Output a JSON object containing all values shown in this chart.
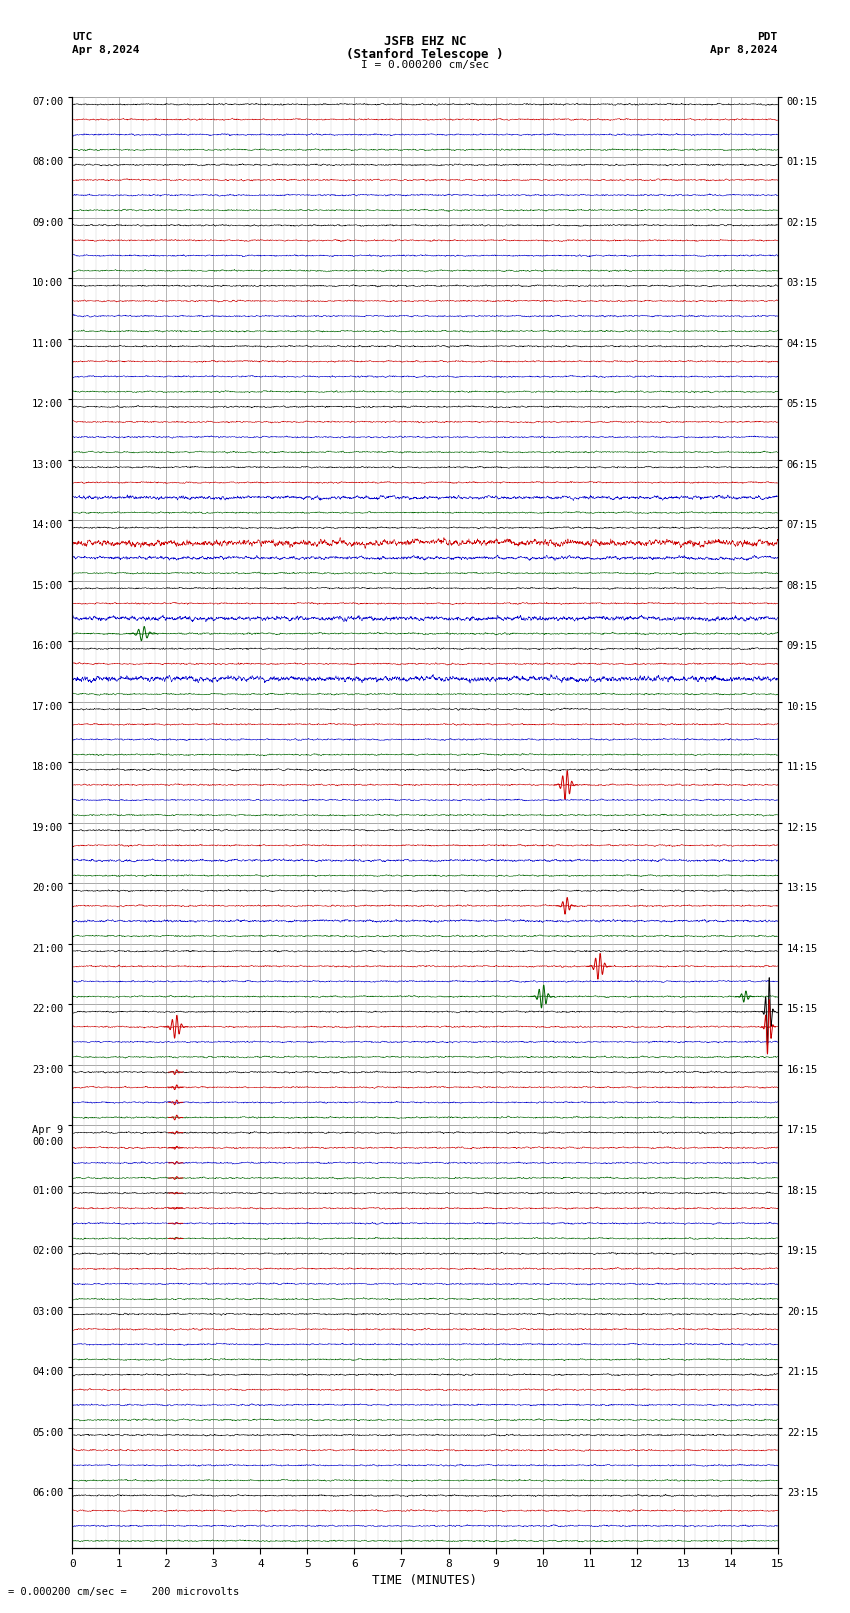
{
  "title_line1": "JSFB EHZ NC",
  "title_line2": "(Stanford Telescope )",
  "scale_text": "I = 0.000200 cm/sec",
  "bottom_text": "= 0.000200 cm/sec =    200 microvolts",
  "xlabel": "TIME (MINUTES)",
  "utc_times": [
    "07:00",
    "08:00",
    "09:00",
    "10:00",
    "11:00",
    "12:00",
    "13:00",
    "14:00",
    "15:00",
    "16:00",
    "17:00",
    "18:00",
    "19:00",
    "20:00",
    "21:00",
    "22:00",
    "23:00",
    "Apr 9\n00:00",
    "01:00",
    "02:00",
    "03:00",
    "04:00",
    "05:00",
    "06:00"
  ],
  "pdt_times": [
    "00:15",
    "01:15",
    "02:15",
    "03:15",
    "04:15",
    "05:15",
    "06:15",
    "07:15",
    "08:15",
    "09:15",
    "10:15",
    "11:15",
    "12:15",
    "13:15",
    "14:15",
    "15:15",
    "16:15",
    "17:15",
    "18:15",
    "19:15",
    "20:15",
    "21:15",
    "22:15",
    "23:15"
  ],
  "num_rows": 24,
  "minutes": 15,
  "bg_color": "#ffffff",
  "trace_colors": [
    "#000000",
    "#cc0000",
    "#0000cc",
    "#006600"
  ],
  "major_grid_color": "#999999",
  "minor_grid_color": "#cccccc",
  "traces_per_row": 4,
  "base_amplitude": 0.07
}
